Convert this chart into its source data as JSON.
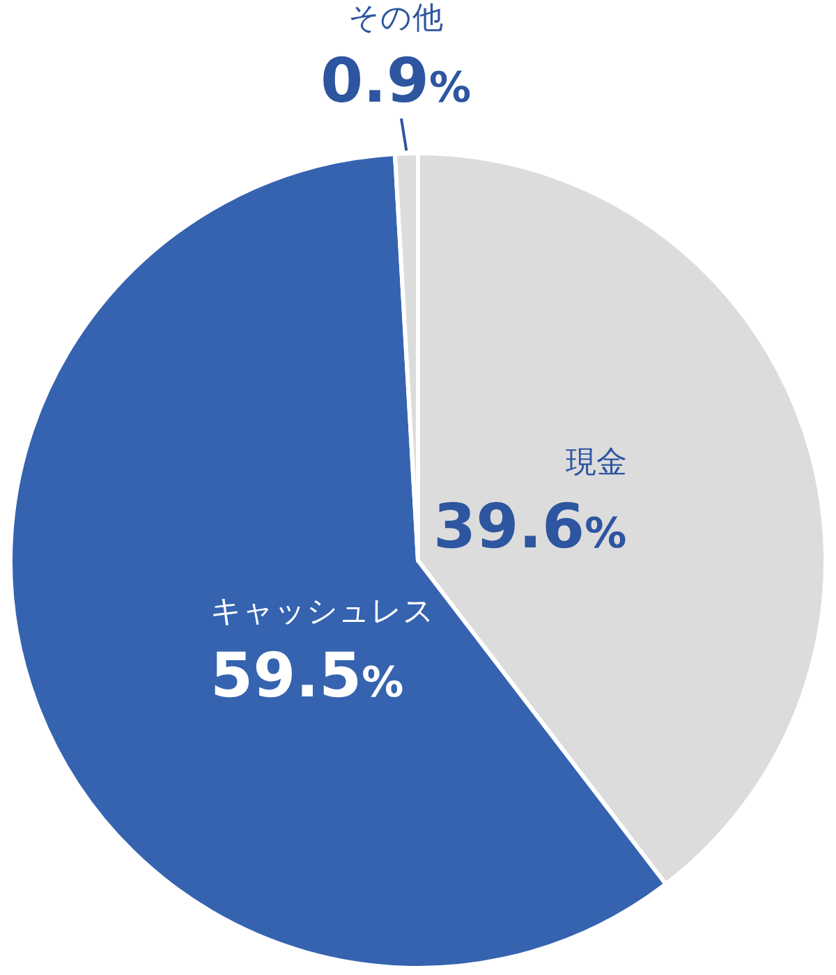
{
  "chart_data": {
    "type": "pie",
    "categories": [
      "現金",
      "キャッシュレス",
      "その他"
    ],
    "values": [
      39.6,
      59.5,
      0.9
    ],
    "colors": [
      "#dcdcdc",
      "#3563b0",
      "#dcdcdc"
    ],
    "value_labels": [
      "39.6%",
      "59.5%",
      "0.9%"
    ]
  }
}
